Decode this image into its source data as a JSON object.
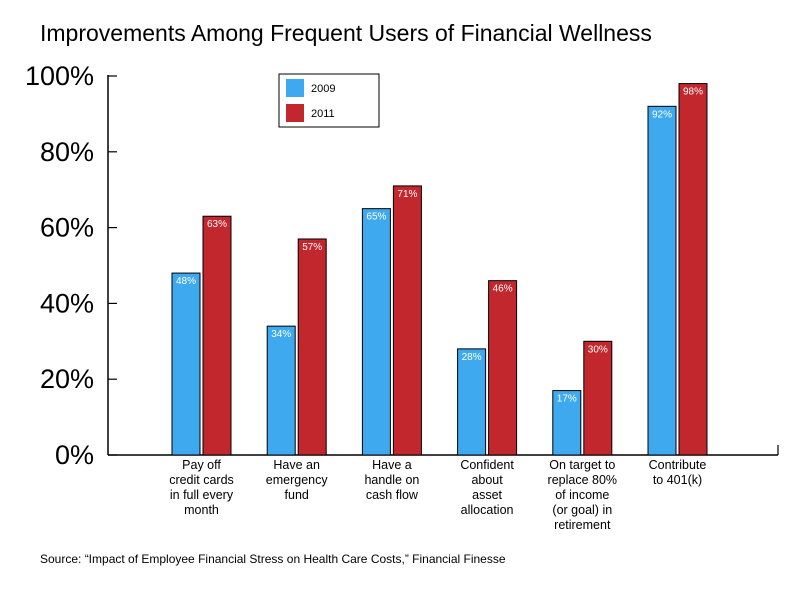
{
  "chart_data": {
    "type": "bar",
    "title": "Improvements Among Frequent Users of Financial Wellness",
    "categories": [
      [
        "Pay off",
        "credit cards",
        "in full every",
        "month"
      ],
      [
        "Have an",
        "emergency",
        "fund"
      ],
      [
        "Have a",
        "handle on",
        "cash flow"
      ],
      [
        "Confident",
        "about",
        "asset",
        "allocation"
      ],
      [
        "On target to",
        "replace 80%",
        "of income",
        "(or goal) in",
        "retirement"
      ],
      [
        "Contribute",
        "to 401(k)"
      ]
    ],
    "series": [
      {
        "name": "2009",
        "color": "#3fa9f0",
        "values": [
          48,
          34,
          65,
          28,
          17,
          92
        ],
        "labels": [
          "48%",
          "34%",
          "65%",
          "28%",
          "17%",
          "92%"
        ]
      },
      {
        "name": "2011",
        "color": "#c1272d",
        "values": [
          63,
          57,
          71,
          46,
          30,
          98
        ],
        "labels": [
          "63%",
          "57%",
          "71%",
          "46%",
          "30%",
          "98%"
        ]
      }
    ],
    "ylim": [
      0,
      100
    ],
    "yticks": [
      0,
      20,
      40,
      60,
      80,
      100
    ],
    "ytick_labels": [
      "0%",
      "20%",
      "40%",
      "60%",
      "80%",
      "100%"
    ],
    "xlabel": "",
    "ylabel": "",
    "grid": false,
    "legend_position": "top-center",
    "source": "Source: “Impact of Employee Financial Stress on Health Care Costs,” Financial Finesse"
  }
}
